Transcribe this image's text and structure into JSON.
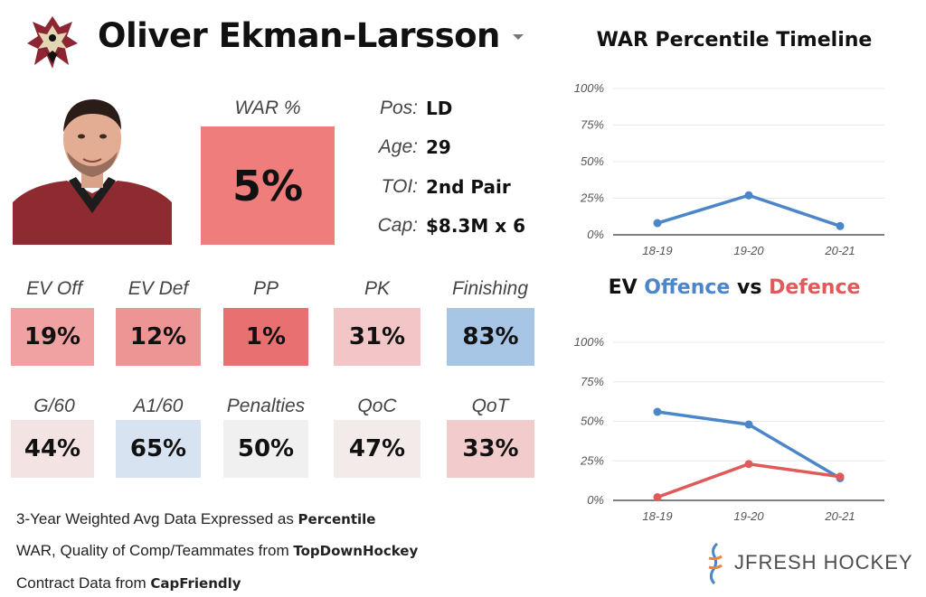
{
  "header": {
    "player_name": "Oliver Ekman-Larsson",
    "team_logo_icon": "coyotes-logo-icon",
    "player_photo_icon": "player-headshot"
  },
  "war": {
    "label": "WAR %",
    "value": "5%",
    "color": "#ee7d7b"
  },
  "info": [
    {
      "label": "Pos:",
      "value": "LD"
    },
    {
      "label": "Age:",
      "value": "29"
    },
    {
      "label": "TOI:",
      "value": "2nd Pair"
    },
    {
      "label": "Cap:",
      "value": "$8.3M x 6"
    }
  ],
  "stats_row1": [
    {
      "label": "EV Off",
      "value": "19%",
      "color": "#f0a2a2"
    },
    {
      "label": "EV Def",
      "value": "12%",
      "color": "#ed9595"
    },
    {
      "label": "PP",
      "value": "1%",
      "color": "#e97070"
    },
    {
      "label": "PK",
      "value": "31%",
      "color": "#f2c6c6"
    },
    {
      "label": "Finishing",
      "value": "83%",
      "color": "#a7c5e5"
    }
  ],
  "stats_row2": [
    {
      "label": "G/60",
      "value": "44%",
      "color": "#f3e3e3"
    },
    {
      "label": "A1/60",
      "value": "65%",
      "color": "#d7e3f1"
    },
    {
      "label": "Penalties",
      "value": "50%",
      "color": "#f0f0f0"
    },
    {
      "label": "QoC",
      "value": "47%",
      "color": "#f3eaea"
    },
    {
      "label": "QoT",
      "value": "33%",
      "color": "#f2cccc"
    }
  ],
  "footnotes": [
    {
      "text": "3-Year Weighted Avg Data Expressed as ",
      "bold": "Percentile"
    },
    {
      "text": "WAR, Quality of Comp/Teammates from ",
      "bold": "TopDownHockey"
    },
    {
      "text": "Contract Data from ",
      "bold": "CapFriendly"
    }
  ],
  "war_chart_title": "WAR Percentile Timeline",
  "ev_chart_title": {
    "part1": "EV ",
    "offence": "Offence",
    "part2": " vs ",
    "defence": "Defence"
  },
  "colors": {
    "offence": "#4a86c8",
    "defence": "#e05a5a",
    "grid": "#e8e8e8",
    "axis": "#555555"
  },
  "brand": {
    "text": "JFRESH HOCKEY",
    "icon": "jfresh-logo-icon"
  },
  "chart_data": [
    {
      "type": "line",
      "title": "WAR Percentile Timeline",
      "categories": [
        "18-19",
        "19-20",
        "20-21"
      ],
      "series": [
        {
          "values": [
            8,
            27,
            6
          ],
          "color": "#4a86c8"
        }
      ],
      "ylim": [
        0,
        100
      ],
      "yticks": [
        "0%",
        "25%",
        "50%",
        "75%",
        "100%"
      ],
      "grid": true
    },
    {
      "type": "line",
      "title": "EV Offence vs Defence",
      "categories": [
        "18-19",
        "19-20",
        "20-21"
      ],
      "series": [
        {
          "name": "Offence",
          "values": [
            56,
            48,
            14
          ],
          "color": "#4a86c8"
        },
        {
          "name": "Defence",
          "values": [
            2,
            23,
            15
          ],
          "color": "#e05a5a"
        }
      ],
      "ylim": [
        0,
        100
      ],
      "yticks": [
        "0%",
        "25%",
        "50%",
        "75%",
        "100%"
      ],
      "grid": true
    }
  ]
}
